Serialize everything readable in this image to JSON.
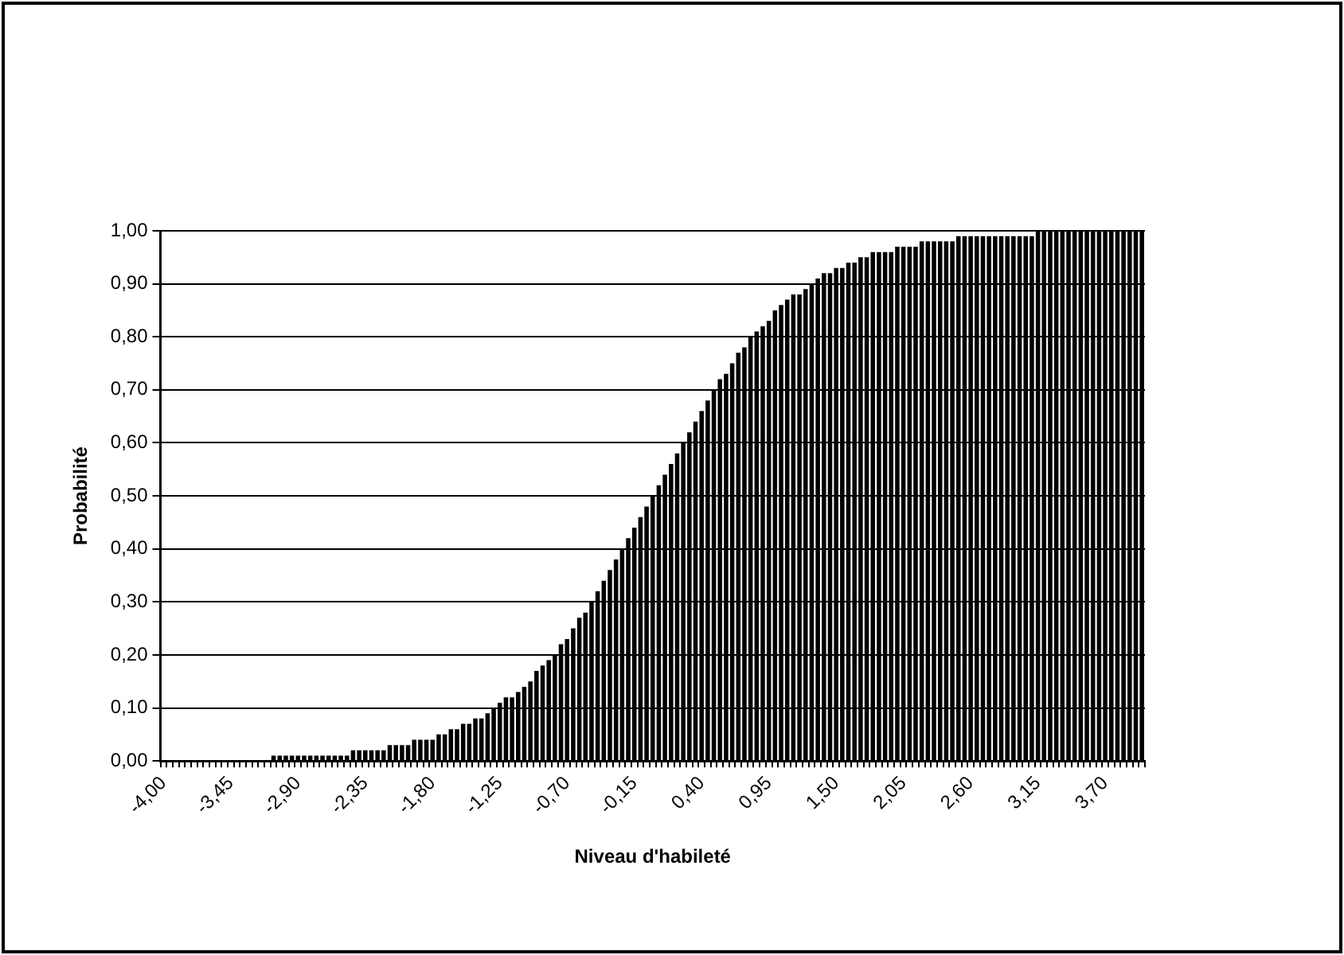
{
  "chart_data": {
    "type": "bar",
    "xlabel": "Niveau d'habileté",
    "ylabel": "Probabilité",
    "categories": [
      "-4,00",
      null,
      null,
      null,
      null,
      null,
      null,
      null,
      null,
      null,
      null,
      "-3,45",
      null,
      null,
      null,
      null,
      null,
      null,
      null,
      null,
      null,
      null,
      "-2,90",
      null,
      null,
      null,
      null,
      null,
      null,
      null,
      null,
      null,
      null,
      "-2,35",
      null,
      null,
      null,
      null,
      null,
      null,
      null,
      null,
      null,
      null,
      "-1,80",
      null,
      null,
      null,
      null,
      null,
      null,
      null,
      null,
      null,
      null,
      "-1,25",
      null,
      null,
      null,
      null,
      null,
      null,
      null,
      null,
      null,
      null,
      "-0,70",
      null,
      null,
      null,
      null,
      null,
      null,
      null,
      null,
      null,
      null,
      "-0,15",
      null,
      null,
      null,
      null,
      null,
      null,
      null,
      null,
      null,
      null,
      "0,40",
      null,
      null,
      null,
      null,
      null,
      null,
      null,
      null,
      null,
      null,
      "0,95",
      null,
      null,
      null,
      null,
      null,
      null,
      null,
      null,
      null,
      null,
      "1,50",
      null,
      null,
      null,
      null,
      null,
      null,
      null,
      null,
      null,
      null,
      "2,05",
      null,
      null,
      null,
      null,
      null,
      null,
      null,
      null,
      null,
      null,
      "2,60",
      null,
      null,
      null,
      null,
      null,
      null,
      null,
      null,
      null,
      null,
      "3,15",
      null,
      null,
      null,
      null,
      null,
      null,
      null,
      null,
      null,
      null,
      "3,70",
      null,
      null,
      null,
      null,
      null,
      null
    ],
    "color": "#000000",
    "values": [
      0,
      0,
      0,
      0,
      0,
      0,
      0,
      0,
      0,
      0,
      0,
      0,
      0,
      0,
      0,
      0,
      0,
      0,
      0.01,
      0.01,
      0.01,
      0.01,
      0.01,
      0.01,
      0.01,
      0.01,
      0.01,
      0.01,
      0.01,
      0.01,
      0.01,
      0.02,
      0.02,
      0.02,
      0.02,
      0.02,
      0.02,
      0.03,
      0.03,
      0.03,
      0.03,
      0.04,
      0.04,
      0.04,
      0.04,
      0.05,
      0.05,
      0.06,
      0.06,
      0.07,
      0.07,
      0.08,
      0.08,
      0.09,
      0.1,
      0.11,
      0.12,
      0.12,
      0.13,
      0.14,
      0.15,
      0.17,
      0.18,
      0.19,
      0.2,
      0.22,
      0.23,
      0.25,
      0.27,
      0.28,
      0.3,
      0.32,
      0.34,
      0.36,
      0.38,
      0.4,
      0.42,
      0.44,
      0.46,
      0.48,
      0.5,
      0.52,
      0.54,
      0.56,
      0.58,
      0.6,
      0.62,
      0.64,
      0.66,
      0.68,
      0.7,
      0.72,
      0.73,
      0.75,
      0.77,
      0.78,
      0.8,
      0.81,
      0.82,
      0.83,
      0.85,
      0.86,
      0.87,
      0.88,
      0.88,
      0.89,
      0.9,
      0.91,
      0.92,
      0.92,
      0.93,
      0.93,
      0.94,
      0.94,
      0.95,
      0.95,
      0.96,
      0.96,
      0.96,
      0.96,
      0.97,
      0.97,
      0.97,
      0.97,
      0.98,
      0.98,
      0.98,
      0.98,
      0.98,
      0.98,
      0.99,
      0.99,
      0.99,
      0.99,
      0.99,
      0.99,
      0.99,
      0.99,
      0.99,
      0.99,
      0.99,
      0.99,
      0.99,
      1,
      1,
      1,
      1,
      1,
      1,
      1,
      1,
      1,
      1,
      1,
      1,
      1,
      1,
      1,
      1,
      1,
      1
    ],
    "ylim": [
      0,
      1
    ],
    "yticks": [
      {
        "value": 0,
        "label": "0,00"
      },
      {
        "value": 0.1,
        "label": "0,10"
      },
      {
        "value": 0.2,
        "label": "0,20"
      },
      {
        "value": 0.3,
        "label": "0,30"
      },
      {
        "value": 0.4,
        "label": "0,40"
      },
      {
        "value": 0.5,
        "label": "0,50"
      },
      {
        "value": 0.6,
        "label": "0,60"
      },
      {
        "value": 0.7,
        "label": "0,70"
      },
      {
        "value": 0.8,
        "label": "0,80"
      },
      {
        "value": 0.9,
        "label": "0,90"
      },
      {
        "value": 1,
        "label": "1,00"
      }
    ],
    "grid": "y"
  }
}
